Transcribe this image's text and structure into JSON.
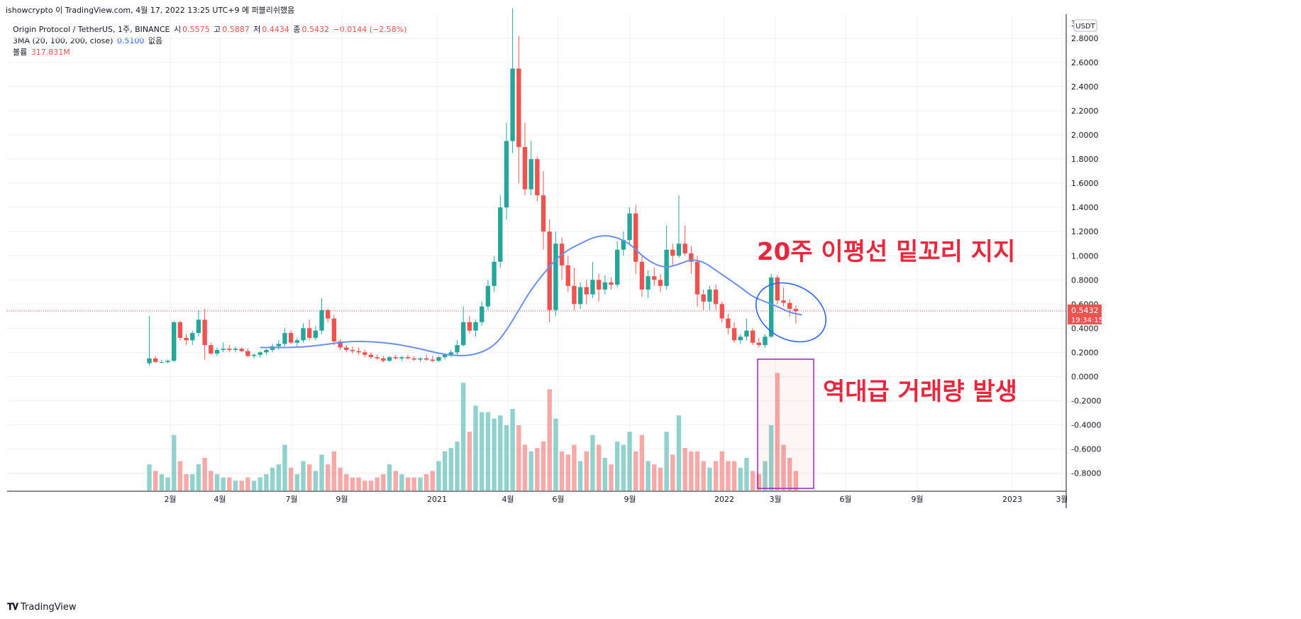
{
  "header": {
    "author_line": "ishowcrypto 이 TradingView.com, 4월 17, 2022 13:25 UTC+9 에 퍼블리쉬했음"
  },
  "legend": {
    "symbol": "Origin Protocol / TetherUS, 1주, BINANCE",
    "open_label": "시",
    "open": "0.5575",
    "high_label": "고",
    "high": "0.5887",
    "low_label": "저",
    "low": "0.4434",
    "close_label": "종",
    "close": "0.5432",
    "change": "−0.0144 (−2.58%)",
    "ma_label": "3MA (20, 100, 200, close)",
    "ma_value": "0.5100",
    "ma_none": "없음",
    "volume_label": "볼륨",
    "volume_value": "317.831M"
  },
  "colors": {
    "up": "#26a69a",
    "down": "#ef5350",
    "ma": "#6b8ff0",
    "annotation_text": "#e8273d",
    "annotation_box": "#9c27b0",
    "ellipse": "#2962ff",
    "price_line": "#ef5350"
  },
  "price_axis": {
    "currency": "USDT",
    "last_price": "0.5432",
    "countdown": "19:34:15",
    "ticks": [
      "2.8000",
      "2.6000",
      "2.4000",
      "2.2000",
      "2.0000",
      "1.8000",
      "1.6000",
      "1.4000",
      "1.2000",
      "1.0000",
      "0.8000",
      "0.6000",
      "0.4000",
      "0.2000",
      "0.0000",
      "-0.2000",
      "-0.4000",
      "-0.6000",
      "-0.8000"
    ]
  },
  "time_axis": {
    "ticks": [
      "2월",
      "4월",
      "7월",
      "9월",
      "2021",
      "4월",
      "6월",
      "9월",
      "2022",
      "3월",
      "6월",
      "9월",
      "2023",
      "3월"
    ]
  },
  "annotations": {
    "ma_support": "20주 이평선 밑꼬리 지지",
    "record_volume": "역대급 거래량 발생"
  },
  "footer": {
    "brand": "TradingView"
  },
  "chart_data": {
    "type": "candlestick",
    "timeframe": "1W",
    "ylim": [
      -0.95,
      3.0
    ],
    "candles": [
      {
        "o": 0.11,
        "h": 0.5,
        "l": 0.09,
        "c": 0.15,
        "v": 8
      },
      {
        "o": 0.15,
        "h": 0.17,
        "l": 0.11,
        "c": 0.12,
        "v": 6
      },
      {
        "o": 0.12,
        "h": 0.14,
        "l": 0.11,
        "c": 0.12,
        "v": 5
      },
      {
        "o": 0.12,
        "h": 0.14,
        "l": 0.11,
        "c": 0.13,
        "v": 4
      },
      {
        "o": 0.13,
        "h": 0.46,
        "l": 0.12,
        "c": 0.45,
        "v": 17
      },
      {
        "o": 0.45,
        "h": 0.46,
        "l": 0.3,
        "c": 0.32,
        "v": 9
      },
      {
        "o": 0.32,
        "h": 0.35,
        "l": 0.26,
        "c": 0.3,
        "v": 5
      },
      {
        "o": 0.3,
        "h": 0.38,
        "l": 0.26,
        "c": 0.36,
        "v": 5
      },
      {
        "o": 0.36,
        "h": 0.55,
        "l": 0.33,
        "c": 0.47,
        "v": 8
      },
      {
        "o": 0.47,
        "h": 0.56,
        "l": 0.14,
        "c": 0.26,
        "v": 10
      },
      {
        "o": 0.26,
        "h": 0.28,
        "l": 0.18,
        "c": 0.19,
        "v": 6
      },
      {
        "o": 0.19,
        "h": 0.24,
        "l": 0.17,
        "c": 0.22,
        "v": 5
      },
      {
        "o": 0.22,
        "h": 0.28,
        "l": 0.2,
        "c": 0.23,
        "v": 4
      },
      {
        "o": 0.23,
        "h": 0.26,
        "l": 0.2,
        "c": 0.22,
        "v": 4
      },
      {
        "o": 0.22,
        "h": 0.25,
        "l": 0.2,
        "c": 0.23,
        "v": 3
      },
      {
        "o": 0.23,
        "h": 0.24,
        "l": 0.2,
        "c": 0.21,
        "v": 3
      },
      {
        "o": 0.21,
        "h": 0.23,
        "l": 0.16,
        "c": 0.17,
        "v": 4
      },
      {
        "o": 0.17,
        "h": 0.19,
        "l": 0.15,
        "c": 0.18,
        "v": 3
      },
      {
        "o": 0.18,
        "h": 0.21,
        "l": 0.16,
        "c": 0.2,
        "v": 4
      },
      {
        "o": 0.2,
        "h": 0.23,
        "l": 0.18,
        "c": 0.22,
        "v": 5
      },
      {
        "o": 0.22,
        "h": 0.27,
        "l": 0.2,
        "c": 0.25,
        "v": 7
      },
      {
        "o": 0.25,
        "h": 0.3,
        "l": 0.22,
        "c": 0.27,
        "v": 8
      },
      {
        "o": 0.27,
        "h": 0.4,
        "l": 0.25,
        "c": 0.36,
        "v": 14
      },
      {
        "o": 0.36,
        "h": 0.38,
        "l": 0.27,
        "c": 0.28,
        "v": 7
      },
      {
        "o": 0.28,
        "h": 0.32,
        "l": 0.25,
        "c": 0.3,
        "v": 5
      },
      {
        "o": 0.3,
        "h": 0.44,
        "l": 0.28,
        "c": 0.4,
        "v": 9
      },
      {
        "o": 0.4,
        "h": 0.47,
        "l": 0.3,
        "c": 0.32,
        "v": 8
      },
      {
        "o": 0.32,
        "h": 0.42,
        "l": 0.3,
        "c": 0.38,
        "v": 6
      },
      {
        "o": 0.38,
        "h": 0.65,
        "l": 0.35,
        "c": 0.55,
        "v": 11
      },
      {
        "o": 0.55,
        "h": 0.56,
        "l": 0.45,
        "c": 0.48,
        "v": 8
      },
      {
        "o": 0.48,
        "h": 0.51,
        "l": 0.26,
        "c": 0.29,
        "v": 12
      },
      {
        "o": 0.29,
        "h": 0.31,
        "l": 0.22,
        "c": 0.24,
        "v": 7
      },
      {
        "o": 0.24,
        "h": 0.26,
        "l": 0.2,
        "c": 0.22,
        "v": 5
      },
      {
        "o": 0.22,
        "h": 0.25,
        "l": 0.19,
        "c": 0.21,
        "v": 4
      },
      {
        "o": 0.21,
        "h": 0.24,
        "l": 0.18,
        "c": 0.2,
        "v": 4
      },
      {
        "o": 0.2,
        "h": 0.22,
        "l": 0.16,
        "c": 0.18,
        "v": 3
      },
      {
        "o": 0.18,
        "h": 0.2,
        "l": 0.15,
        "c": 0.16,
        "v": 3
      },
      {
        "o": 0.16,
        "h": 0.18,
        "l": 0.14,
        "c": 0.15,
        "v": 4
      },
      {
        "o": 0.15,
        "h": 0.17,
        "l": 0.12,
        "c": 0.13,
        "v": 5
      },
      {
        "o": 0.13,
        "h": 0.17,
        "l": 0.12,
        "c": 0.16,
        "v": 8
      },
      {
        "o": 0.16,
        "h": 0.18,
        "l": 0.14,
        "c": 0.15,
        "v": 6
      },
      {
        "o": 0.15,
        "h": 0.17,
        "l": 0.13,
        "c": 0.16,
        "v": 5
      },
      {
        "o": 0.16,
        "h": 0.18,
        "l": 0.14,
        "c": 0.15,
        "v": 4
      },
      {
        "o": 0.15,
        "h": 0.17,
        "l": 0.13,
        "c": 0.14,
        "v": 4
      },
      {
        "o": 0.14,
        "h": 0.16,
        "l": 0.12,
        "c": 0.15,
        "v": 4
      },
      {
        "o": 0.15,
        "h": 0.18,
        "l": 0.13,
        "c": 0.14,
        "v": 5
      },
      {
        "o": 0.14,
        "h": 0.17,
        "l": 0.12,
        "c": 0.13,
        "v": 6
      },
      {
        "o": 0.13,
        "h": 0.17,
        "l": 0.12,
        "c": 0.16,
        "v": 9
      },
      {
        "o": 0.16,
        "h": 0.19,
        "l": 0.14,
        "c": 0.18,
        "v": 12
      },
      {
        "o": 0.18,
        "h": 0.22,
        "l": 0.16,
        "c": 0.2,
        "v": 13
      },
      {
        "o": 0.2,
        "h": 0.3,
        "l": 0.18,
        "c": 0.26,
        "v": 15
      },
      {
        "o": 0.26,
        "h": 0.58,
        "l": 0.25,
        "c": 0.45,
        "v": 33
      },
      {
        "o": 0.45,
        "h": 0.5,
        "l": 0.36,
        "c": 0.38,
        "v": 18
      },
      {
        "o": 0.38,
        "h": 0.47,
        "l": 0.33,
        "c": 0.45,
        "v": 26
      },
      {
        "o": 0.45,
        "h": 0.62,
        "l": 0.42,
        "c": 0.58,
        "v": 24
      },
      {
        "o": 0.58,
        "h": 0.8,
        "l": 0.55,
        "c": 0.75,
        "v": 24
      },
      {
        "o": 0.75,
        "h": 1.0,
        "l": 0.7,
        "c": 0.95,
        "v": 22
      },
      {
        "o": 0.95,
        "h": 1.5,
        "l": 0.9,
        "c": 1.4,
        "v": 23
      },
      {
        "o": 1.4,
        "h": 2.1,
        "l": 1.3,
        "c": 1.95,
        "v": 20
      },
      {
        "o": 1.95,
        "h": 3.05,
        "l": 1.85,
        "c": 2.55,
        "v": 25
      },
      {
        "o": 2.55,
        "h": 2.82,
        "l": 1.6,
        "c": 1.9,
        "v": 20
      },
      {
        "o": 1.9,
        "h": 2.1,
        "l": 1.5,
        "c": 1.55,
        "v": 14
      },
      {
        "o": 1.55,
        "h": 1.95,
        "l": 1.5,
        "c": 1.8,
        "v": 12
      },
      {
        "o": 1.8,
        "h": 1.82,
        "l": 1.45,
        "c": 1.5,
        "v": 13
      },
      {
        "o": 1.5,
        "h": 1.7,
        "l": 1.05,
        "c": 1.2,
        "v": 15
      },
      {
        "o": 1.2,
        "h": 1.3,
        "l": 0.45,
        "c": 0.55,
        "v": 31
      },
      {
        "o": 0.55,
        "h": 1.2,
        "l": 0.5,
        "c": 1.1,
        "v": 22
      },
      {
        "o": 1.1,
        "h": 1.15,
        "l": 0.8,
        "c": 0.92,
        "v": 12
      },
      {
        "o": 0.92,
        "h": 1.0,
        "l": 0.7,
        "c": 0.75,
        "v": 11
      },
      {
        "o": 0.75,
        "h": 0.9,
        "l": 0.55,
        "c": 0.6,
        "v": 14
      },
      {
        "o": 0.6,
        "h": 0.78,
        "l": 0.56,
        "c": 0.74,
        "v": 9
      },
      {
        "o": 0.74,
        "h": 0.8,
        "l": 0.6,
        "c": 0.68,
        "v": 12
      },
      {
        "o": 0.68,
        "h": 0.95,
        "l": 0.65,
        "c": 0.8,
        "v": 17
      },
      {
        "o": 0.8,
        "h": 0.85,
        "l": 0.62,
        "c": 0.72,
        "v": 14
      },
      {
        "o": 0.72,
        "h": 0.84,
        "l": 0.68,
        "c": 0.78,
        "v": 10
      },
      {
        "o": 0.78,
        "h": 0.82,
        "l": 0.72,
        "c": 0.76,
        "v": 8
      },
      {
        "o": 0.76,
        "h": 1.12,
        "l": 0.74,
        "c": 1.05,
        "v": 15
      },
      {
        "o": 1.05,
        "h": 1.2,
        "l": 1.0,
        "c": 1.13,
        "v": 14
      },
      {
        "o": 1.13,
        "h": 1.4,
        "l": 1.1,
        "c": 1.35,
        "v": 18
      },
      {
        "o": 1.35,
        "h": 1.42,
        "l": 0.85,
        "c": 0.95,
        "v": 12
      },
      {
        "o": 0.95,
        "h": 1.0,
        "l": 0.66,
        "c": 0.72,
        "v": 17
      },
      {
        "o": 0.72,
        "h": 0.88,
        "l": 0.65,
        "c": 0.83,
        "v": 9
      },
      {
        "o": 0.83,
        "h": 0.9,
        "l": 0.75,
        "c": 0.8,
        "v": 8
      },
      {
        "o": 0.8,
        "h": 0.85,
        "l": 0.7,
        "c": 0.75,
        "v": 7
      },
      {
        "o": 0.75,
        "h": 1.25,
        "l": 0.72,
        "c": 1.05,
        "v": 18
      },
      {
        "o": 1.05,
        "h": 1.1,
        "l": 0.92,
        "c": 1.0,
        "v": 11
      },
      {
        "o": 1.0,
        "h": 1.5,
        "l": 0.98,
        "c": 1.1,
        "v": 23
      },
      {
        "o": 1.1,
        "h": 1.25,
        "l": 1.0,
        "c": 1.02,
        "v": 13
      },
      {
        "o": 1.02,
        "h": 1.08,
        "l": 0.85,
        "c": 0.95,
        "v": 12
      },
      {
        "o": 0.95,
        "h": 1.0,
        "l": 0.58,
        "c": 0.68,
        "v": 12
      },
      {
        "o": 0.68,
        "h": 0.72,
        "l": 0.55,
        "c": 0.62,
        "v": 9
      },
      {
        "o": 0.62,
        "h": 0.75,
        "l": 0.55,
        "c": 0.72,
        "v": 7
      },
      {
        "o": 0.72,
        "h": 0.76,
        "l": 0.55,
        "c": 0.6,
        "v": 9
      },
      {
        "o": 0.6,
        "h": 0.62,
        "l": 0.45,
        "c": 0.48,
        "v": 12
      },
      {
        "o": 0.48,
        "h": 0.52,
        "l": 0.35,
        "c": 0.4,
        "v": 9
      },
      {
        "o": 0.4,
        "h": 0.45,
        "l": 0.28,
        "c": 0.3,
        "v": 9
      },
      {
        "o": 0.3,
        "h": 0.35,
        "l": 0.27,
        "c": 0.33,
        "v": 7
      },
      {
        "o": 0.33,
        "h": 0.48,
        "l": 0.3,
        "c": 0.38,
        "v": 10
      },
      {
        "o": 0.38,
        "h": 0.4,
        "l": 0.26,
        "c": 0.28,
        "v": 6
      },
      {
        "o": 0.28,
        "h": 0.32,
        "l": 0.24,
        "c": 0.26,
        "v": 5
      },
      {
        "o": 0.26,
        "h": 0.35,
        "l": 0.24,
        "c": 0.33,
        "v": 9
      },
      {
        "o": 0.33,
        "h": 0.85,
        "l": 0.32,
        "c": 0.82,
        "v": 20
      },
      {
        "o": 0.82,
        "h": 0.84,
        "l": 0.6,
        "c": 0.63,
        "v": 36
      },
      {
        "o": 0.63,
        "h": 0.74,
        "l": 0.58,
        "c": 0.61,
        "v": 14
      },
      {
        "o": 0.61,
        "h": 0.64,
        "l": 0.5,
        "c": 0.56,
        "v": 10
      },
      {
        "o": 0.56,
        "h": 0.59,
        "l": 0.44,
        "c": 0.54,
        "v": 6
      }
    ],
    "ma20": [
      {
        "i": 18,
        "v": 0.24
      },
      {
        "i": 24,
        "v": 0.24
      },
      {
        "i": 28,
        "v": 0.26
      },
      {
        "i": 32,
        "v": 0.29
      },
      {
        "i": 36,
        "v": 0.29
      },
      {
        "i": 40,
        "v": 0.27
      },
      {
        "i": 44,
        "v": 0.23
      },
      {
        "i": 47,
        "v": 0.19
      },
      {
        "i": 50,
        "v": 0.17
      },
      {
        "i": 53,
        "v": 0.18
      },
      {
        "i": 56,
        "v": 0.25
      },
      {
        "i": 58,
        "v": 0.38
      },
      {
        "i": 60,
        "v": 0.55
      },
      {
        "i": 62,
        "v": 0.72
      },
      {
        "i": 64,
        "v": 0.85
      },
      {
        "i": 66,
        "v": 0.97
      },
      {
        "i": 68,
        "v": 1.05
      },
      {
        "i": 70,
        "v": 1.1
      },
      {
        "i": 72,
        "v": 1.15
      },
      {
        "i": 74,
        "v": 1.17
      },
      {
        "i": 76,
        "v": 1.15
      },
      {
        "i": 78,
        "v": 1.1
      },
      {
        "i": 80,
        "v": 1.0
      },
      {
        "i": 82,
        "v": 0.93
      },
      {
        "i": 84,
        "v": 0.9
      },
      {
        "i": 86,
        "v": 0.93
      },
      {
        "i": 88,
        "v": 0.97
      },
      {
        "i": 90,
        "v": 0.95
      },
      {
        "i": 92,
        "v": 0.88
      },
      {
        "i": 94,
        "v": 0.81
      },
      {
        "i": 96,
        "v": 0.74
      },
      {
        "i": 98,
        "v": 0.66
      },
      {
        "i": 100,
        "v": 0.62
      },
      {
        "i": 102,
        "v": 0.58
      },
      {
        "i": 104,
        "v": 0.53
      },
      {
        "i": 106,
        "v": 0.51
      }
    ]
  }
}
